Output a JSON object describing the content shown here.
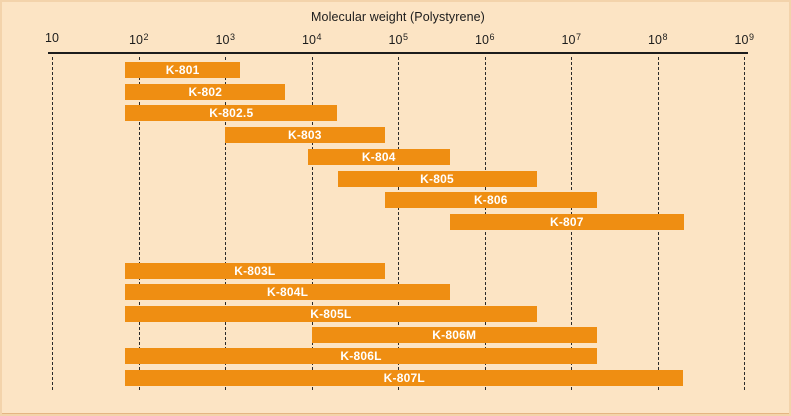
{
  "chart_data": {
    "type": "bar",
    "subtype": "horizontal-log-range",
    "title": "Molecular weight (Polystyrene)",
    "x_axis": {
      "scale": "log10",
      "min": 10,
      "max": 1000000000,
      "gridlines": "dashed-vertical",
      "ticks": [
        {
          "value": 10,
          "base": "10",
          "exp": ""
        },
        {
          "value": 100,
          "base": "10",
          "exp": "2"
        },
        {
          "value": 1000,
          "base": "10",
          "exp": "3"
        },
        {
          "value": 10000,
          "base": "10",
          "exp": "4"
        },
        {
          "value": 100000,
          "base": "10",
          "exp": "5"
        },
        {
          "value": 1000000,
          "base": "10",
          "exp": "6"
        },
        {
          "value": 10000000,
          "base": "10",
          "exp": "7"
        },
        {
          "value": 100000000,
          "base": "10",
          "exp": "8"
        },
        {
          "value": 1000000000,
          "base": "10",
          "exp": "9"
        }
      ]
    },
    "series": [
      {
        "label": "K-801",
        "group": 0,
        "mw_min": 70,
        "mw_max": 1500
      },
      {
        "label": "K-802",
        "group": 0,
        "mw_min": 70,
        "mw_max": 5000
      },
      {
        "label": "K-802.5",
        "group": 0,
        "mw_min": 70,
        "mw_max": 20000
      },
      {
        "label": "K-803",
        "group": 0,
        "mw_min": 1000,
        "mw_max": 70000
      },
      {
        "label": "K-804",
        "group": 0,
        "mw_min": 9000,
        "mw_max": 400000
      },
      {
        "label": "K-805",
        "group": 0,
        "mw_min": 20000,
        "mw_max": 4000000
      },
      {
        "label": "K-806",
        "group": 0,
        "mw_min": 70000,
        "mw_max": 20000000
      },
      {
        "label": "K-807",
        "group": 0,
        "mw_min": 400000,
        "mw_max": 200000000
      },
      {
        "label": "K-803L",
        "group": 1,
        "mw_min": 70,
        "mw_max": 70000
      },
      {
        "label": "K-804L",
        "group": 1,
        "mw_min": 70,
        "mw_max": 400000
      },
      {
        "label": "K-805L",
        "group": 1,
        "mw_min": 70,
        "mw_max": 4000000
      },
      {
        "label": "K-806M",
        "group": 1,
        "mw_min": 10000,
        "mw_max": 20000000
      },
      {
        "label": "K-806L",
        "group": 1,
        "mw_min": 70,
        "mw_max": 20000000
      },
      {
        "label": "K-807L",
        "group": 1,
        "mw_min": 70,
        "mw_max": 200000000
      }
    ]
  },
  "colors": {
    "background": "#fce4c4",
    "frame": "#f3d3ab",
    "frame_bottom": "#e5b583",
    "bar": "#ef8e12",
    "bar_label": "#ffffff",
    "axis": "#1c1c1c",
    "gridline": "#2a2a2a",
    "text": "#1c1c1c"
  }
}
